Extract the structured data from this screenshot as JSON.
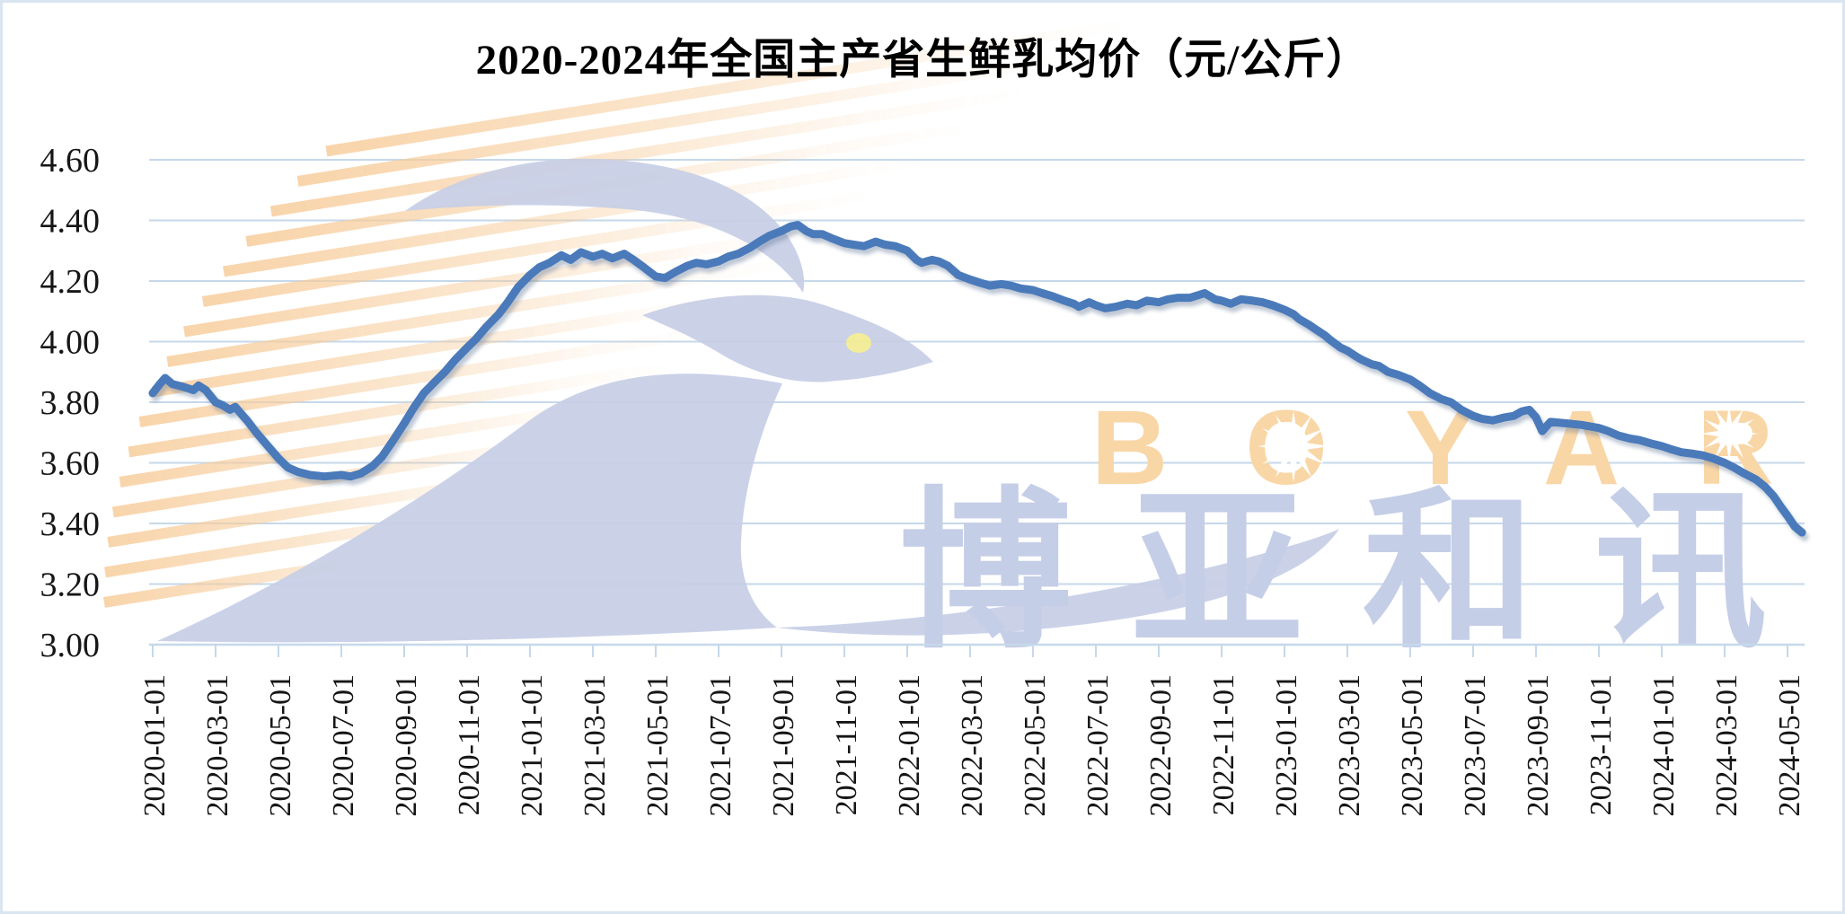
{
  "title": "2020-2024年全国主产省生鲜乳均价（元/公斤）",
  "watermark": {
    "brand_en": "BOYAR",
    "brand_cn": "博亚和讯",
    "stripe_color": "#f7cd9c",
    "bird_color": "#c7cee6",
    "text_cn_color": "#c5cee7",
    "text_en_color": "#f9d6a6"
  },
  "chart_data": {
    "type": "line",
    "title": "2020-2024年全国主产省生鲜乳均价（元/公斤）",
    "xlabel": "",
    "ylabel": "",
    "ylim": [
      3.0,
      4.6
    ],
    "y_tick_step": 0.2,
    "y_tick_labels": [
      "4.60",
      "4.40",
      "4.20",
      "4.00",
      "3.80",
      "3.60",
      "3.40",
      "3.20",
      "3.00"
    ],
    "x_tick_labels": [
      "2020-01-01",
      "2020-03-01",
      "2020-05-01",
      "2020-07-01",
      "2020-09-01",
      "2020-11-01",
      "2021-01-01",
      "2021-03-01",
      "2021-05-01",
      "2021-07-01",
      "2021-09-01",
      "2021-11-01",
      "2022-01-01",
      "2022-03-01",
      "2022-05-01",
      "2022-07-01",
      "2022-09-01",
      "2022-11-01",
      "2023-01-01",
      "2023-03-01",
      "2023-05-01",
      "2023-07-01",
      "2023-09-01",
      "2023-11-01",
      "2024-01-01",
      "2024-03-01",
      "2024-05-01"
    ],
    "grid": true,
    "legend": false,
    "line_color": "#4a7aba",
    "line_width": 9,
    "series_name": "全国主产省生鲜乳均价",
    "unit": "元/公斤",
    "points": [
      [
        "2020-01-01",
        3.83
      ],
      [
        "2020-01-08",
        3.86
      ],
      [
        "2020-01-13",
        3.88
      ],
      [
        "2020-01-20",
        3.86
      ],
      [
        "2020-02-01",
        3.85
      ],
      [
        "2020-02-10",
        3.84
      ],
      [
        "2020-02-15",
        3.855
      ],
      [
        "2020-02-22",
        3.84
      ],
      [
        "2020-03-01",
        3.8
      ],
      [
        "2020-03-08",
        3.79
      ],
      [
        "2020-03-15",
        3.775
      ],
      [
        "2020-03-20",
        3.785
      ],
      [
        "2020-03-25",
        3.765
      ],
      [
        "2020-04-01",
        3.74
      ],
      [
        "2020-04-10",
        3.7
      ],
      [
        "2020-04-20",
        3.66
      ],
      [
        "2020-05-01",
        3.615
      ],
      [
        "2020-05-10",
        3.585
      ],
      [
        "2020-05-20",
        3.57
      ],
      [
        "2020-06-01",
        3.56
      ],
      [
        "2020-06-15",
        3.555
      ],
      [
        "2020-07-01",
        3.56
      ],
      [
        "2020-07-10",
        3.555
      ],
      [
        "2020-07-20",
        3.565
      ],
      [
        "2020-08-01",
        3.59
      ],
      [
        "2020-08-10",
        3.62
      ],
      [
        "2020-08-20",
        3.67
      ],
      [
        "2020-09-01",
        3.73
      ],
      [
        "2020-09-10",
        3.78
      ],
      [
        "2020-09-20",
        3.83
      ],
      [
        "2020-10-01",
        3.87
      ],
      [
        "2020-10-10",
        3.9
      ],
      [
        "2020-10-20",
        3.94
      ],
      [
        "2020-11-01",
        3.98
      ],
      [
        "2020-11-10",
        4.01
      ],
      [
        "2020-11-20",
        4.05
      ],
      [
        "2020-12-01",
        4.09
      ],
      [
        "2020-12-10",
        4.13
      ],
      [
        "2020-12-20",
        4.18
      ],
      [
        "2021-01-01",
        4.22
      ],
      [
        "2021-01-10",
        4.245
      ],
      [
        "2021-01-20",
        4.26
      ],
      [
        "2021-02-01",
        4.285
      ],
      [
        "2021-02-10",
        4.27
      ],
      [
        "2021-02-20",
        4.295
      ],
      [
        "2021-03-01",
        4.28
      ],
      [
        "2021-03-10",
        4.29
      ],
      [
        "2021-03-20",
        4.275
      ],
      [
        "2021-04-01",
        4.29
      ],
      [
        "2021-04-10",
        4.27
      ],
      [
        "2021-04-20",
        4.245
      ],
      [
        "2021-05-01",
        4.215
      ],
      [
        "2021-05-10",
        4.21
      ],
      [
        "2021-05-20",
        4.23
      ],
      [
        "2021-06-01",
        4.25
      ],
      [
        "2021-06-10",
        4.26
      ],
      [
        "2021-06-20",
        4.255
      ],
      [
        "2021-07-01",
        4.265
      ],
      [
        "2021-07-10",
        4.28
      ],
      [
        "2021-07-20",
        4.29
      ],
      [
        "2021-08-01",
        4.31
      ],
      [
        "2021-08-10",
        4.33
      ],
      [
        "2021-08-20",
        4.35
      ],
      [
        "2021-09-01",
        4.365
      ],
      [
        "2021-09-10",
        4.38
      ],
      [
        "2021-09-17",
        4.385
      ],
      [
        "2021-09-25",
        4.365
      ],
      [
        "2021-10-01",
        4.355
      ],
      [
        "2021-10-10",
        4.355
      ],
      [
        "2021-10-20",
        4.34
      ],
      [
        "2021-11-01",
        4.325
      ],
      [
        "2021-11-10",
        4.32
      ],
      [
        "2021-11-20",
        4.315
      ],
      [
        "2021-12-01",
        4.33
      ],
      [
        "2021-12-10",
        4.32
      ],
      [
        "2021-12-20",
        4.315
      ],
      [
        "2022-01-01",
        4.3
      ],
      [
        "2022-01-10",
        4.27
      ],
      [
        "2022-01-15",
        4.26
      ],
      [
        "2022-01-25",
        4.27
      ],
      [
        "2022-02-01",
        4.265
      ],
      [
        "2022-02-10",
        4.25
      ],
      [
        "2022-02-20",
        4.22
      ],
      [
        "2022-03-01",
        4.205
      ],
      [
        "2022-03-10",
        4.195
      ],
      [
        "2022-03-20",
        4.185
      ],
      [
        "2022-04-01",
        4.19
      ],
      [
        "2022-04-10",
        4.185
      ],
      [
        "2022-04-20",
        4.175
      ],
      [
        "2022-05-01",
        4.17
      ],
      [
        "2022-05-10",
        4.16
      ],
      [
        "2022-05-20",
        4.15
      ],
      [
        "2022-06-01",
        4.135
      ],
      [
        "2022-06-10",
        4.125
      ],
      [
        "2022-06-15",
        4.115
      ],
      [
        "2022-06-25",
        4.13
      ],
      [
        "2022-07-01",
        4.12
      ],
      [
        "2022-07-10",
        4.11
      ],
      [
        "2022-07-20",
        4.115
      ],
      [
        "2022-08-01",
        4.125
      ],
      [
        "2022-08-10",
        4.12
      ],
      [
        "2022-08-20",
        4.135
      ],
      [
        "2022-09-01",
        4.13
      ],
      [
        "2022-09-10",
        4.14
      ],
      [
        "2022-09-20",
        4.145
      ],
      [
        "2022-10-01",
        4.145
      ],
      [
        "2022-10-15",
        4.16
      ],
      [
        "2022-10-25",
        4.14
      ],
      [
        "2022-11-01",
        4.135
      ],
      [
        "2022-11-10",
        4.125
      ],
      [
        "2022-11-20",
        4.14
      ],
      [
        "2022-12-01",
        4.135
      ],
      [
        "2022-12-10",
        4.13
      ],
      [
        "2022-12-20",
        4.12
      ],
      [
        "2023-01-01",
        4.105
      ],
      [
        "2023-01-10",
        4.09
      ],
      [
        "2023-01-15",
        4.075
      ],
      [
        "2023-01-25",
        4.055
      ],
      [
        "2023-02-01",
        4.04
      ],
      [
        "2023-02-10",
        4.02
      ],
      [
        "2023-02-15",
        4.005
      ],
      [
        "2023-02-25",
        3.98
      ],
      [
        "2023-03-01",
        3.97
      ],
      [
        "2023-03-10",
        3.95
      ],
      [
        "2023-03-15",
        3.94
      ],
      [
        "2023-03-25",
        3.925
      ],
      [
        "2023-04-01",
        3.92
      ],
      [
        "2023-04-10",
        3.9
      ],
      [
        "2023-04-20",
        3.89
      ],
      [
        "2023-05-01",
        3.875
      ],
      [
        "2023-05-10",
        3.855
      ],
      [
        "2023-05-20",
        3.83
      ],
      [
        "2023-06-01",
        3.81
      ],
      [
        "2023-06-10",
        3.8
      ],
      [
        "2023-06-20",
        3.775
      ],
      [
        "2023-07-01",
        3.755
      ],
      [
        "2023-07-10",
        3.745
      ],
      [
        "2023-07-20",
        3.74
      ],
      [
        "2023-08-01",
        3.75
      ],
      [
        "2023-08-10",
        3.755
      ],
      [
        "2023-08-18",
        3.77
      ],
      [
        "2023-08-25",
        3.775
      ],
      [
        "2023-09-01",
        3.75
      ],
      [
        "2023-09-07",
        3.705
      ],
      [
        "2023-09-15",
        3.735
      ],
      [
        "2023-10-01",
        3.73
      ],
      [
        "2023-10-15",
        3.725
      ],
      [
        "2023-11-01",
        3.715
      ],
      [
        "2023-11-10",
        3.705
      ],
      [
        "2023-11-20",
        3.69
      ],
      [
        "2023-12-01",
        3.68
      ],
      [
        "2023-12-10",
        3.675
      ],
      [
        "2023-12-20",
        3.665
      ],
      [
        "2024-01-01",
        3.655
      ],
      [
        "2024-01-10",
        3.645
      ],
      [
        "2024-01-20",
        3.635
      ],
      [
        "2024-02-01",
        3.63
      ],
      [
        "2024-02-10",
        3.625
      ],
      [
        "2024-02-20",
        3.615
      ],
      [
        "2024-03-01",
        3.6
      ],
      [
        "2024-03-10",
        3.585
      ],
      [
        "2024-03-20",
        3.565
      ],
      [
        "2024-04-01",
        3.545
      ],
      [
        "2024-04-10",
        3.52
      ],
      [
        "2024-04-18",
        3.49
      ],
      [
        "2024-04-25",
        3.455
      ],
      [
        "2024-05-01",
        3.425
      ],
      [
        "2024-05-08",
        3.39
      ],
      [
        "2024-05-15",
        3.37
      ]
    ]
  }
}
